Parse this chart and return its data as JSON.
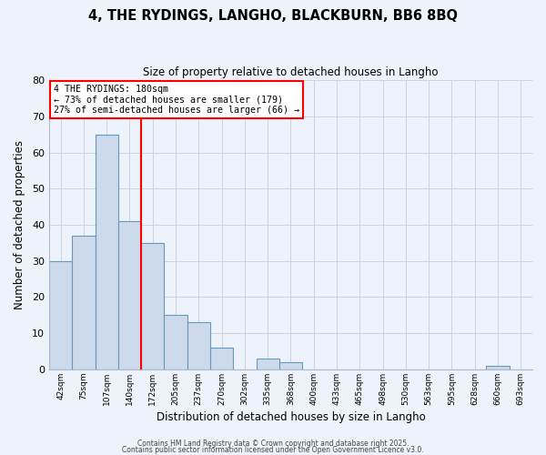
{
  "title": "4, THE RYDINGS, LANGHO, BLACKBURN, BB6 8BQ",
  "subtitle": "Size of property relative to detached houses in Langho",
  "xlabel": "Distribution of detached houses by size in Langho",
  "ylabel": "Number of detached properties",
  "bar_color": "#ccdaeb",
  "bar_edge_color": "#6699bb",
  "background_color": "#eef2fa",
  "grid_color": "#c5cfe0",
  "bin_labels": [
    "42sqm",
    "75sqm",
    "107sqm",
    "140sqm",
    "172sqm",
    "205sqm",
    "237sqm",
    "270sqm",
    "302sqm",
    "335sqm",
    "368sqm",
    "400sqm",
    "433sqm",
    "465sqm",
    "498sqm",
    "530sqm",
    "563sqm",
    "595sqm",
    "628sqm",
    "660sqm",
    "693sqm"
  ],
  "bar_heights": [
    30,
    37,
    65,
    41,
    35,
    15,
    13,
    6,
    0,
    3,
    2,
    0,
    0,
    0,
    0,
    0,
    0,
    0,
    0,
    1,
    0
  ],
  "red_line_bin": 4,
  "ylim": [
    0,
    80
  ],
  "yticks": [
    0,
    10,
    20,
    30,
    40,
    50,
    60,
    70,
    80
  ],
  "annotation_title": "4 THE RYDINGS: 180sqm",
  "annotation_line1": "← 73% of detached houses are smaller (179)",
  "annotation_line2": "27% of semi-detached houses are larger (66) →",
  "footer1": "Contains HM Land Registry data © Crown copyright and database right 2025.",
  "footer2": "Contains public sector information licensed under the Open Government Licence v3.0.",
  "figsize": [
    6.0,
    5.0
  ],
  "dpi": 100
}
